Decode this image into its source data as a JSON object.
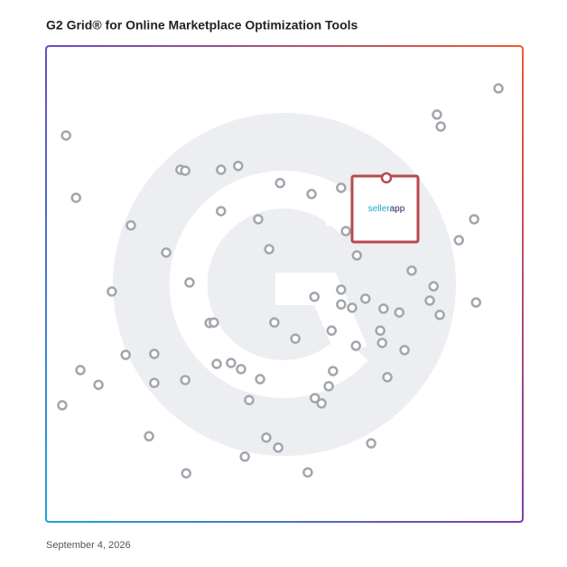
{
  "chart_data": {
    "type": "scatter",
    "title": "G2 Grid® for Online Marketplace Optimization Tools",
    "date": "September 4, 2026",
    "xlim": [
      0,
      100
    ],
    "ylim": [
      0,
      100
    ],
    "point_color": "#a2a6ad",
    "x": [
      94.9,
      82.0,
      82.8,
      4.2,
      28.2,
      29.2,
      36.7,
      40.3,
      49.1,
      55.7,
      61.9,
      6.3,
      36.7,
      44.5,
      17.8,
      62.9,
      89.8,
      86.6,
      46.8,
      25.2,
      65.2,
      76.7,
      30.1,
      13.8,
      81.3,
      61.9,
      56.3,
      67.0,
      61.9,
      64.2,
      70.8,
      74.1,
      80.5,
      82.6,
      90.2,
      34.3,
      35.2,
      47.9,
      59.9,
      70.1,
      52.3,
      65.0,
      70.5,
      75.2,
      16.7,
      22.7,
      7.2,
      11.0,
      35.8,
      38.8,
      40.9,
      44.9,
      29.2,
      22.7,
      60.2,
      71.6,
      59.3,
      42.6,
      56.4,
      57.8,
      3.4,
      21.6,
      46.2,
      48.7,
      68.2,
      41.7,
      29.4,
      54.9
    ],
    "y": [
      91.1,
      85.6,
      83.1,
      81.2,
      74.0,
      73.8,
      74.0,
      74.8,
      71.2,
      68.9,
      70.2,
      68.1,
      65.3,
      63.6,
      62.3,
      61.1,
      63.6,
      59.2,
      57.3,
      56.6,
      56.0,
      52.8,
      50.3,
      48.4,
      49.5,
      48.8,
      47.3,
      46.9,
      45.7,
      45.0,
      44.8,
      44.0,
      46.5,
      43.5,
      46.1,
      41.8,
      41.9,
      41.9,
      40.2,
      40.2,
      38.5,
      37.0,
      37.6,
      36.1,
      35.1,
      35.3,
      31.9,
      28.8,
      33.2,
      33.4,
      32.1,
      30.0,
      29.8,
      29.2,
      31.7,
      30.4,
      28.5,
      25.6,
      26.0,
      24.9,
      24.5,
      18.0,
      17.7,
      15.6,
      16.5,
      13.7,
      10.2,
      10.4
    ],
    "highlight": {
      "x": 71.4,
      "y": 72.3,
      "label": [
        "seller",
        "app"
      ],
      "color": "#b94a4c",
      "label_colors": [
        "#1ea6cc",
        "#1c2a5c"
      ]
    }
  }
}
